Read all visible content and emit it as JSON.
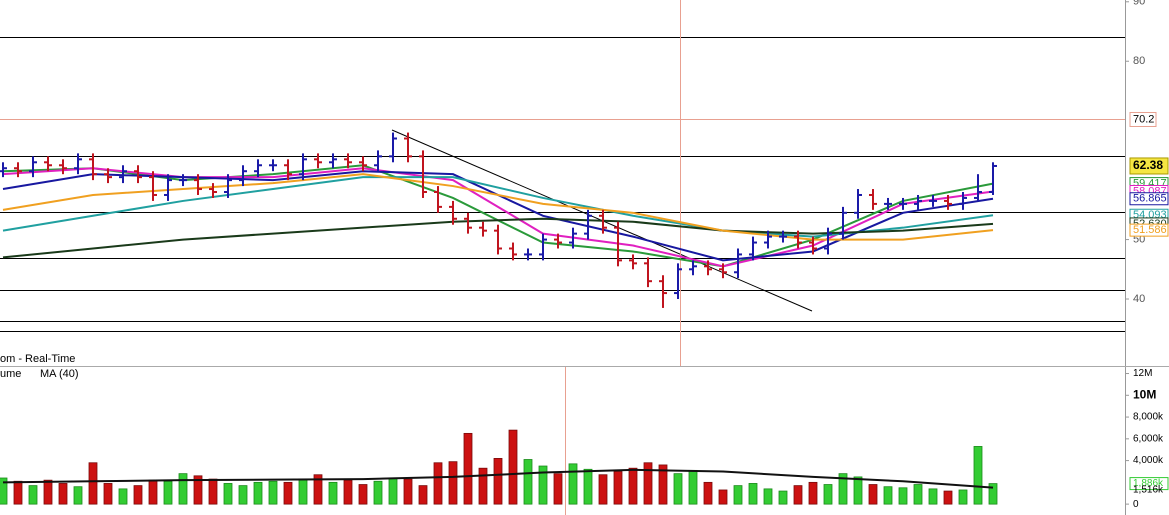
{
  "chart_data": {
    "type": "ohlc",
    "title": "om - Real-Time",
    "up_color": "#1a1aa8",
    "down_color": "#c0141e",
    "last_close_color": "#f5e642",
    "open": [
      61.5,
      62,
      61.5,
      63,
      62.5,
      62,
      63.5,
      61,
      60.5,
      61.5,
      60.5,
      57.5,
      60,
      60,
      58.5,
      58,
      60,
      61.5,
      62.5,
      62.5,
      61,
      63.5,
      63,
      63.5,
      63,
      62.5,
      64,
      67,
      64,
      58,
      55.5,
      53.5,
      52,
      51.5,
      48.5,
      47.5,
      47.5,
      50,
      49.5,
      51,
      54,
      52,
      46.5,
      46,
      43,
      41,
      45,
      45.5,
      45,
      44.5,
      47.5,
      49.5,
      50.5,
      50.5,
      49.5,
      48.5,
      51,
      54.5,
      57.5,
      56,
      56,
      56,
      56.5,
      56.5,
      56,
      57,
      58
    ],
    "high": [
      63,
      63,
      64,
      64,
      63.5,
      64.5,
      64.5,
      62,
      62.5,
      62.5,
      61.5,
      61,
      61,
      61,
      59.5,
      61,
      62.5,
      63.5,
      63.5,
      63.5,
      64.5,
      64.5,
      64.5,
      64.5,
      64,
      65,
      68,
      68,
      65,
      59,
      56.5,
      54.5,
      53,
      52.5,
      49.5,
      48.5,
      51,
      51,
      52,
      55,
      55,
      53,
      47.5,
      47,
      44,
      46,
      46.5,
      46.5,
      46,
      48.5,
      50.5,
      51.5,
      51.5,
      51.5,
      50.5,
      52,
      55.5,
      58.5,
      58.5,
      57,
      57,
      57.5,
      57.5,
      57.5,
      58,
      61,
      63
    ],
    "low": [
      60.5,
      60.5,
      60.5,
      61.5,
      61,
      61,
      60,
      59.5,
      59.5,
      59.5,
      56.5,
      56.5,
      59,
      57.5,
      57,
      57,
      59,
      60.5,
      61.5,
      60,
      60,
      62,
      62,
      62,
      61.5,
      61.5,
      63,
      63,
      57,
      54.5,
      52.5,
      51,
      50.5,
      47.5,
      46.5,
      46.5,
      46.5,
      48.5,
      48.5,
      50,
      51,
      45.5,
      45,
      42,
      38.5,
      40,
      44,
      44,
      43.5,
      43.5,
      46.5,
      48.5,
      49.5,
      48.5,
      47.5,
      47.5,
      50,
      53.5,
      55,
      55,
      55,
      55,
      55.5,
      55,
      55,
      56.5,
      57.5
    ],
    "close": [
      62,
      61.5,
      63,
      62.5,
      62,
      63.5,
      61,
      60.5,
      61.5,
      60.5,
      57.5,
      60,
      60,
      58.5,
      58,
      60,
      61.5,
      62.5,
      62.5,
      61,
      63.5,
      63,
      63.5,
      63,
      62.5,
      64,
      67,
      64,
      58,
      55.5,
      53.5,
      52,
      51.5,
      48.5,
      47.5,
      47.5,
      50,
      49.5,
      51,
      54,
      52,
      46.5,
      46,
      43,
      41,
      45,
      45.5,
      45,
      44.5,
      47.5,
      49.5,
      50.5,
      50.5,
      49.5,
      48.5,
      51,
      54.5,
      57.5,
      56,
      56,
      56,
      56.5,
      56.5,
      56,
      57,
      58,
      62.38
    ],
    "ylim": [
      28.9,
      90.3
    ],
    "yticks": [
      40,
      50,
      80,
      90
    ],
    "marker_level": {
      "value": 70.2,
      "color": "#e8a090"
    },
    "ma_x": [
      0,
      6,
      12,
      18,
      24,
      30,
      36,
      42,
      48,
      54,
      60,
      66
    ],
    "series": [
      {
        "color": "#2a9a3a",
        "values": [
          61.5,
          62,
          60,
          61,
          62.5,
          57,
          49.5,
          48,
          45.5,
          50,
          56.5,
          59.417
        ]
      },
      {
        "color": "#e020c0",
        "values": [
          61,
          62,
          60.5,
          60.5,
          62,
          60,
          51,
          49,
          45.5,
          49,
          56,
          58.087
        ]
      },
      {
        "color": "#1818a0",
        "values": [
          58.5,
          61,
          60.5,
          60,
          61.5,
          61,
          54,
          50.5,
          46.5,
          48,
          54.5,
          56.865
        ]
      },
      {
        "color": "#20a0a0",
        "values": [
          51.5,
          54,
          56.5,
          58.5,
          60.5,
          60.5,
          57,
          54,
          51.5,
          50.5,
          52,
          54.093
        ]
      },
      {
        "color": "#1a3a1a",
        "values": [
          47,
          48.5,
          50,
          51,
          52,
          53,
          53.5,
          53,
          51.5,
          51,
          51.5,
          52.63
        ],
        "value_labels": [
          null,
          null,
          null,
          null,
          null,
          null,
          null,
          null,
          null,
          null,
          null,
          "52.630"
        ]
      },
      {
        "color": "#f0a020",
        "values": [
          55,
          57.5,
          58.5,
          59.5,
          61,
          59,
          56,
          54.5,
          51.5,
          50,
          50,
          51.586
        ]
      }
    ],
    "volume": {
      "title": "ume",
      "up_color": "#33cc33",
      "down_color": "#cc1111",
      "values": [
        2400,
        2100,
        1700,
        2200,
        1900,
        1600,
        3800,
        1900,
        1400,
        1700,
        2200,
        2100,
        2800,
        2600,
        2300,
        1900,
        1700,
        2000,
        2100,
        2000,
        2300,
        2700,
        2000,
        2200,
        1800,
        2100,
        2400,
        2300,
        1700,
        3800,
        3900,
        6500,
        3300,
        4200,
        6800,
        4100,
        3500,
        2800,
        3700,
        3200,
        2700,
        3000,
        3300,
        3800,
        3600,
        2800,
        3100,
        2000,
        1300,
        1700,
        1900,
        1400,
        1200,
        1700,
        2000,
        1800,
        2800,
        2500,
        1800,
        1600,
        1500,
        1800,
        1400,
        1200,
        1300,
        5300,
        1886
      ],
      "value_labels": [
        null,
        null,
        null,
        null,
        null,
        null,
        null,
        null,
        null,
        null,
        null,
        null,
        null,
        null,
        null,
        null,
        null,
        null,
        null,
        null,
        null,
        null,
        null,
        null,
        null,
        null,
        null,
        null,
        null,
        null,
        null,
        null,
        null,
        null,
        null,
        null,
        null,
        null,
        null,
        null,
        null,
        null,
        null,
        null,
        null,
        null,
        null,
        null,
        null,
        null,
        null,
        null,
        null,
        null,
        null,
        null,
        null,
        null,
        null,
        null,
        null,
        null,
        null,
        null,
        null,
        null,
        "1,886k"
      ],
      "ylim": [
        -1000,
        12600
      ],
      "yticks": [
        {
          "value": 12000,
          "label": "12M"
        },
        {
          "value": 10000,
          "label": "10M"
        },
        {
          "value": 8000,
          "label": "8,000k"
        },
        {
          "value": 6000,
          "label": "6,000k"
        },
        {
          "value": 4000,
          "label": "4,000k"
        },
        0
      ],
      "ma": {
        "name": "MA (40)",
        "color": "#111111",
        "values": [
          2000,
          2100,
          2200,
          2250,
          2300,
          2500,
          2900,
          3150,
          3000,
          2500,
          2100,
          1516
        ],
        "value_labels": [
          null,
          null,
          null,
          null,
          null,
          null,
          null,
          null,
          null,
          null,
          null,
          "1,516k"
        ]
      }
    }
  }
}
